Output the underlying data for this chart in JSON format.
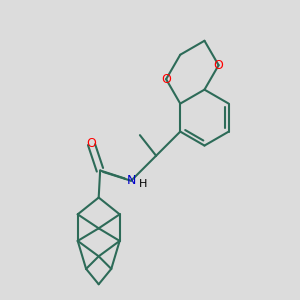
{
  "bg_color": "#dcdcdc",
  "bond_color": "#2d6b58",
  "bond_width": 1.5,
  "o_color": "#ff0000",
  "n_color": "#0000cc",
  "figsize": [
    3.0,
    3.0
  ],
  "dpi": 100,
  "xlim": [
    0,
    10
  ],
  "ylim": [
    0,
    10
  ]
}
